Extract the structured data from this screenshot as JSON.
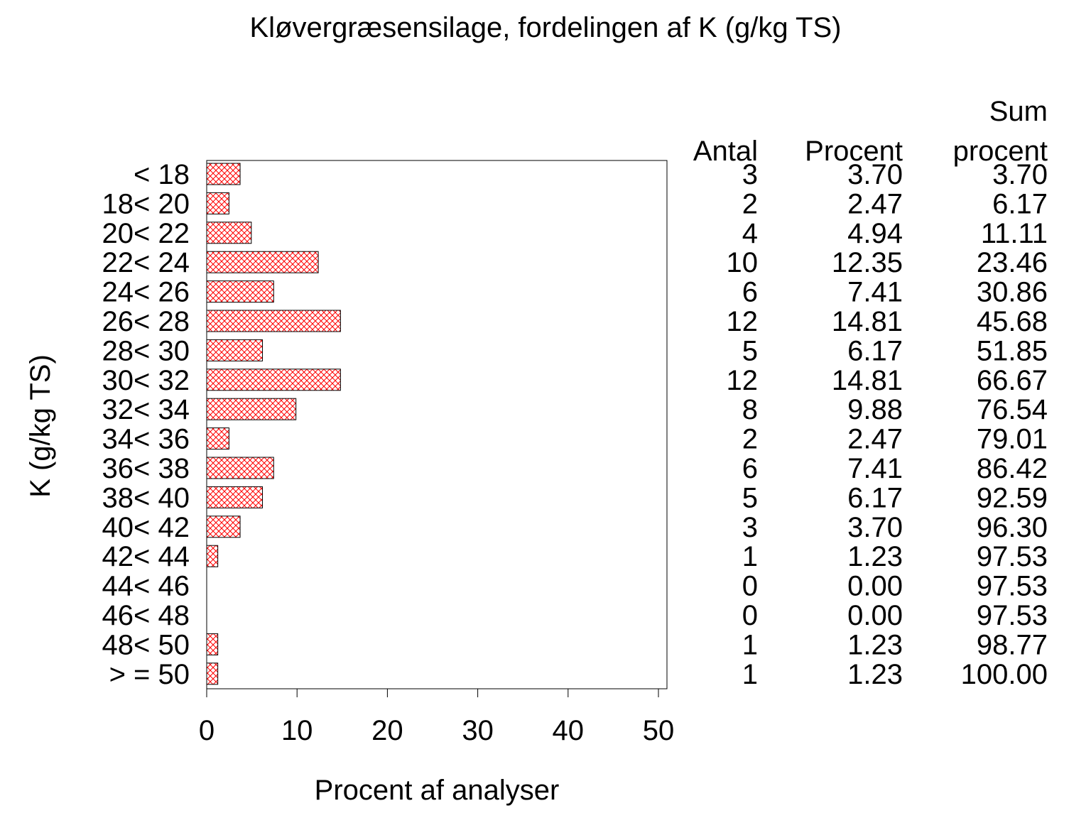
{
  "chart_data": {
    "type": "bar",
    "orientation": "horizontal",
    "title": "Kløvergræsensilage, fordelingen af K (g/kg TS)",
    "xlabel": "Procent af analyser",
    "ylabel": "K (g/kg TS)",
    "xlim": [
      0,
      50
    ],
    "xticks": [
      "0",
      "10",
      "20",
      "30",
      "40",
      "50"
    ],
    "grid": false,
    "bar_color": "#ff0000",
    "bar_fill": "crosshatch",
    "categories": [
      "< 18",
      "18< 20",
      "20< 22",
      "22< 24",
      "24< 26",
      "26< 28",
      "28< 30",
      "30< 32",
      "32< 34",
      "34< 36",
      "36< 38",
      "38< 40",
      "40< 42",
      "42< 44",
      "44< 46",
      "46< 48",
      "48< 50",
      "> = 50"
    ],
    "values": [
      3.7,
      2.47,
      4.94,
      12.35,
      7.41,
      14.81,
      6.17,
      14.81,
      9.88,
      2.47,
      7.41,
      6.17,
      3.7,
      1.23,
      0.0,
      0.0,
      1.23,
      1.23
    ],
    "table": {
      "headers": {
        "antal": "Antal",
        "procent": "Procent",
        "sum_top": "Sum",
        "sum_bottom": "procent"
      },
      "antal": [
        "3",
        "2",
        "4",
        "10",
        "6",
        "12",
        "5",
        "12",
        "8",
        "2",
        "6",
        "5",
        "3",
        "1",
        "0",
        "0",
        "1",
        "1"
      ],
      "procent": [
        "3.70",
        "2.47",
        "4.94",
        "12.35",
        "7.41",
        "14.81",
        "6.17",
        "14.81",
        "9.88",
        "2.47",
        "7.41",
        "6.17",
        "3.70",
        "1.23",
        "0.00",
        "0.00",
        "1.23",
        "1.23"
      ],
      "sum_procent": [
        "3.70",
        "6.17",
        "11.11",
        "23.46",
        "30.86",
        "45.68",
        "51.85",
        "66.67",
        "76.54",
        "79.01",
        "86.42",
        "92.59",
        "96.30",
        "97.53",
        "97.53",
        "97.53",
        "98.77",
        "100.00"
      ]
    }
  }
}
